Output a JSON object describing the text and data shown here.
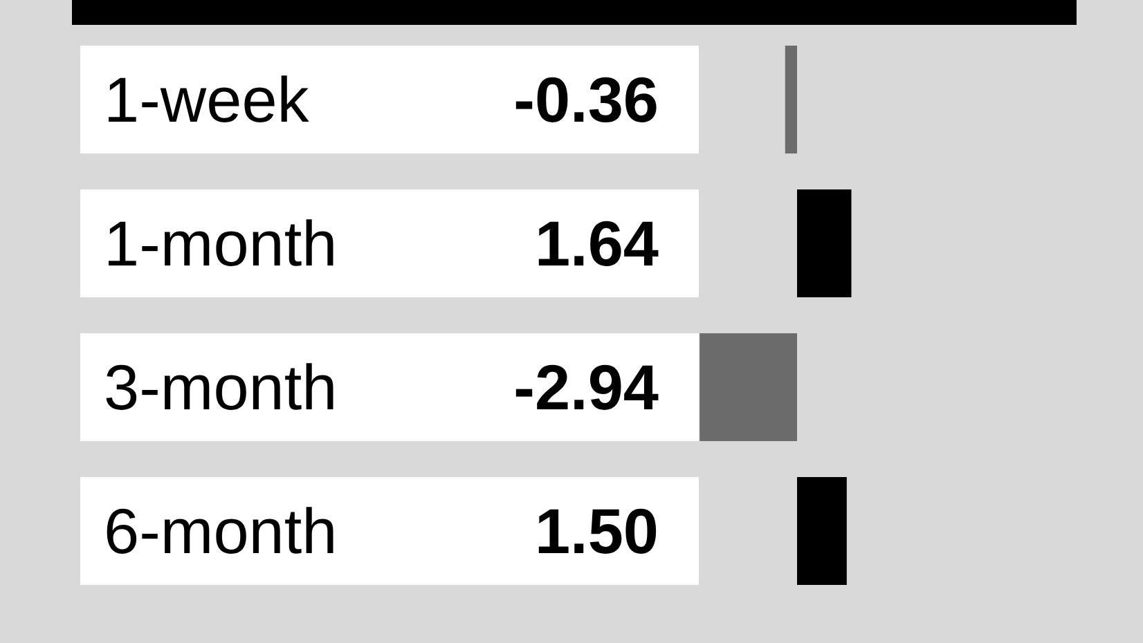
{
  "chart_data": {
    "type": "bar",
    "orientation": "horizontal",
    "categories": [
      "1-week",
      "1-month",
      "3-month",
      "6-month"
    ],
    "values": [
      -0.36,
      1.64,
      -2.94,
      1.5
    ],
    "colors": [
      "#6b6b6b",
      "#000000",
      "#6b6b6b",
      "#000000"
    ],
    "value_labels": [
      "-0.36",
      "1.64",
      "-2.94",
      "1.50"
    ]
  }
}
